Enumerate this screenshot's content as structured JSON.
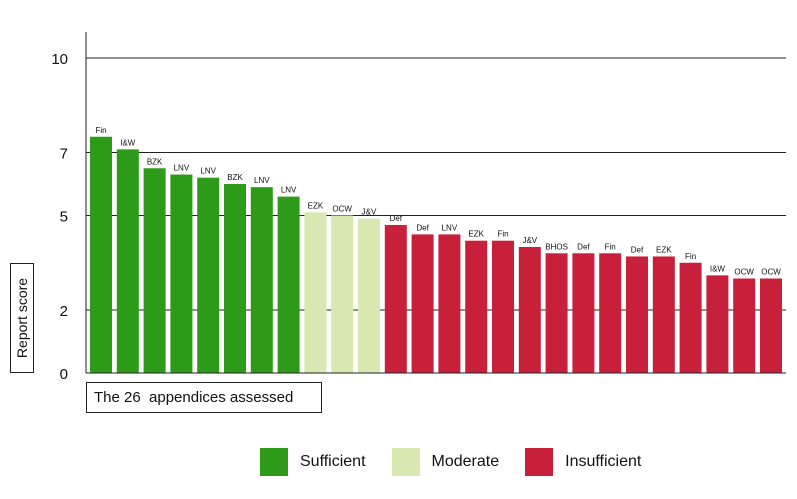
{
  "chart_data": {
    "type": "bar",
    "xlabel": "The 26  appendices assessed",
    "ylabel": "Report score",
    "ylim": [
      0,
      10
    ],
    "yticks": [
      "0",
      "2",
      "5",
      "7",
      "10"
    ],
    "grid": true,
    "legend_position": "bottom",
    "categories": [
      "Fin",
      "I&W",
      "BZK",
      "LNV",
      "LNV",
      "BZK",
      "LNV",
      "LNV",
      "EZK",
      "OCW",
      "J&V",
      "Def",
      "Def",
      "LNV",
      "EZK",
      "Fin",
      "J&V",
      "BHOS",
      "Def",
      "Fin",
      "Def",
      "EZK",
      "Fin",
      "I&W",
      "OCW",
      "OCW"
    ],
    "values": [
      7.5,
      7.1,
      6.5,
      6.3,
      6.2,
      6.0,
      5.9,
      5.6,
      5.1,
      5.0,
      4.9,
      4.7,
      4.4,
      4.4,
      4.2,
      4.2,
      4.0,
      3.8,
      3.8,
      3.8,
      3.7,
      3.7,
      3.5,
      3.1,
      3.0,
      3.0
    ],
    "classes": [
      "Sufficient",
      "Sufficient",
      "Sufficient",
      "Sufficient",
      "Sufficient",
      "Sufficient",
      "Sufficient",
      "Sufficient",
      "Moderate",
      "Moderate",
      "Moderate",
      "Insufficient",
      "Insufficient",
      "Insufficient",
      "Insufficient",
      "Insufficient",
      "Insufficient",
      "Insufficient",
      "Insufficient",
      "Insufficient",
      "Insufficient",
      "Insufficient",
      "Insufficient",
      "Insufficient",
      "Insufficient",
      "Insufficient"
    ],
    "legend": [
      {
        "label": "Sufficient",
        "color": "#2e9a1a"
      },
      {
        "label": "Moderate",
        "color": "#d8e8b0"
      },
      {
        "label": "Insufficient",
        "color": "#c8203a"
      }
    ]
  }
}
